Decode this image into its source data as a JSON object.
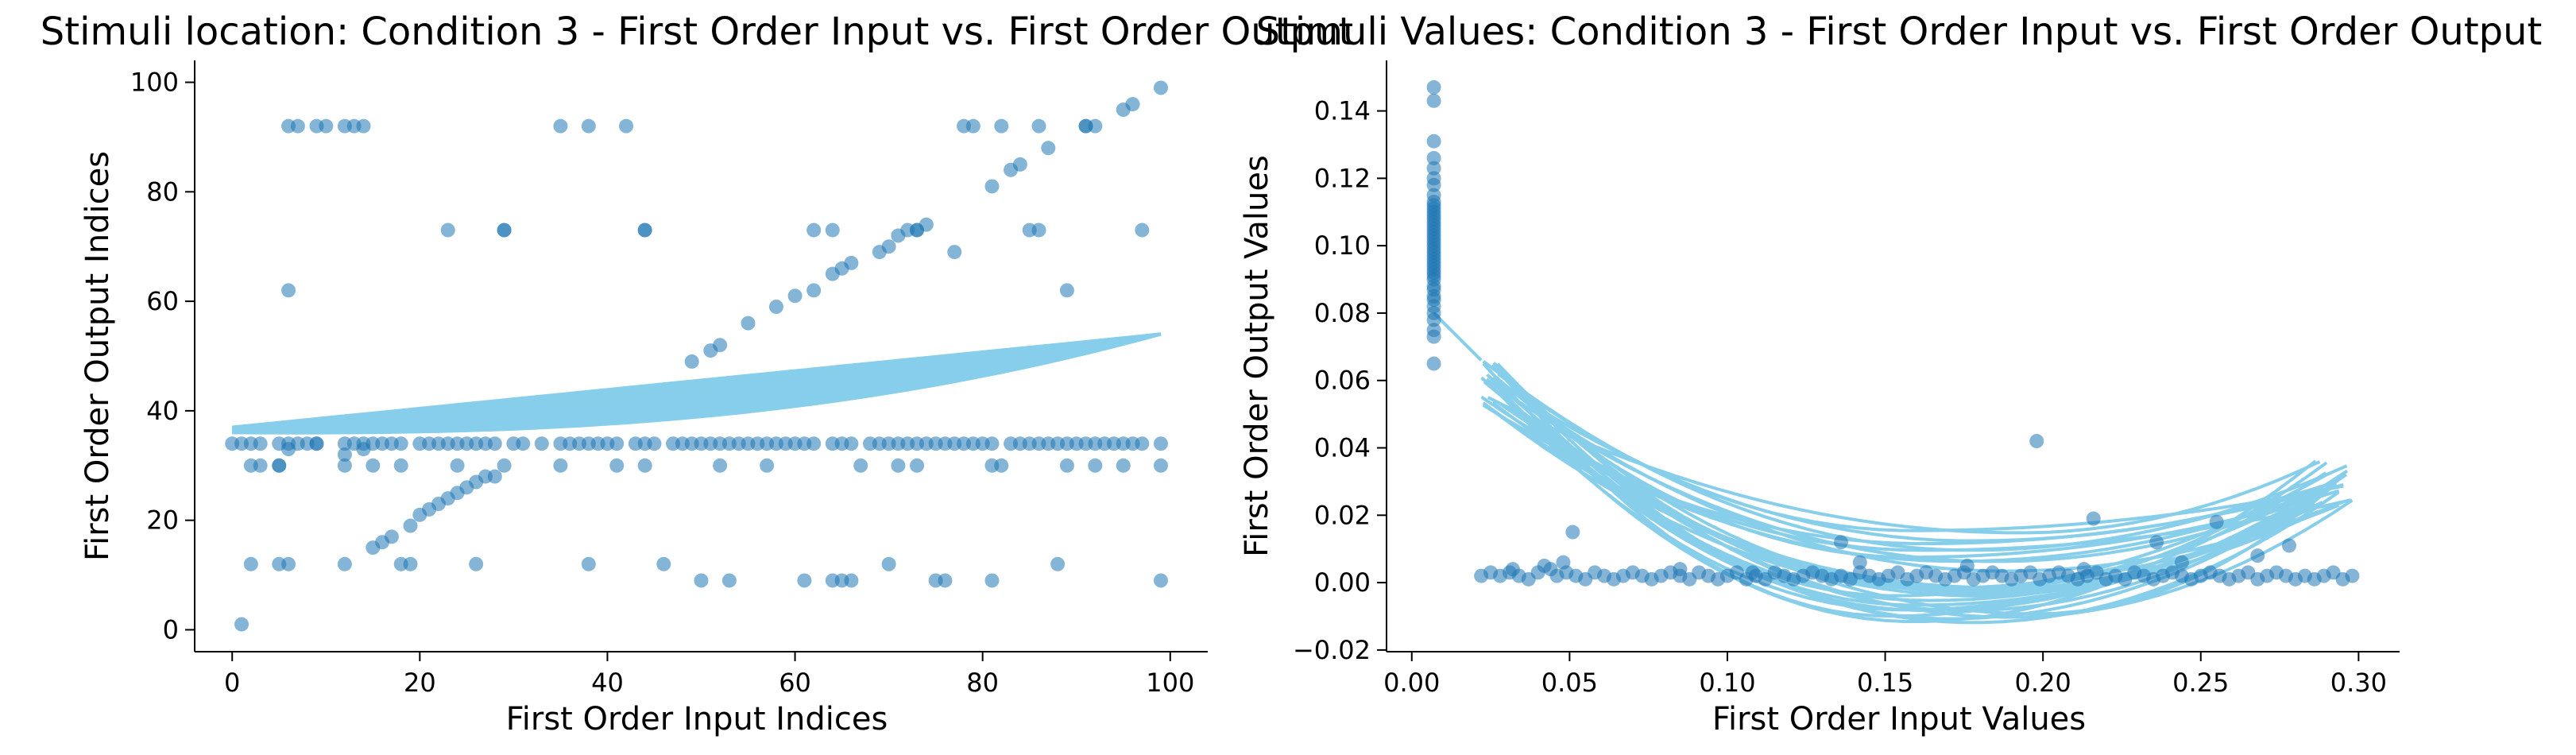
{
  "colors": {
    "point": "#1f77b4",
    "fit_line": "#87ceeb",
    "axis": "#000000",
    "background": "#ffffff"
  },
  "chart_data": [
    {
      "type": "scatter",
      "title": "Stimuli location: Condition 3 - First Order Input vs. First Order Output",
      "xlabel": "First Order Input Indices",
      "ylabel": "First Order Output Indices",
      "xlim": [
        -4,
        104
      ],
      "ylim": [
        -4,
        104
      ],
      "xticks": [
        0,
        20,
        40,
        60,
        80,
        100
      ],
      "yticks": [
        0,
        20,
        40,
        60,
        80,
        100
      ],
      "grid": false,
      "spines": "left-bottom",
      "series": [
        {
          "kind": "points",
          "x": [
            0,
            1,
            2,
            3,
            5,
            6,
            7,
            8,
            9,
            12,
            13,
            14,
            15,
            16,
            17,
            18,
            20,
            21,
            22,
            23,
            24,
            25,
            26,
            27,
            28,
            30,
            31,
            33,
            35,
            36,
            37,
            38,
            39,
            40,
            41,
            43,
            44,
            45,
            47,
            48,
            49,
            50,
            51,
            52,
            53,
            54,
            55,
            56,
            57,
            58,
            59,
            60,
            61,
            62,
            64,
            65,
            66,
            68,
            69,
            70,
            71,
            72,
            73,
            74,
            75,
            76,
            77,
            78,
            79,
            80,
            81,
            83,
            84,
            85,
            86,
            87,
            88,
            89,
            90,
            91,
            92,
            93,
            94,
            95,
            96,
            97,
            99,
            2,
            3,
            5,
            12,
            15,
            18,
            24,
            29,
            35,
            41,
            44,
            52,
            57,
            67,
            71,
            73,
            81,
            82,
            89,
            92,
            95,
            99,
            2,
            5,
            6,
            12,
            19,
            26,
            38,
            46,
            50,
            53,
            61,
            64,
            65,
            66,
            70,
            75,
            76,
            81,
            88,
            99,
            1,
            5,
            6,
            9,
            12,
            14,
            15,
            16,
            17,
            18,
            19,
            20,
            21,
            22,
            23,
            24,
            25,
            26,
            27,
            28,
            6,
            7,
            9,
            10,
            12,
            13,
            14,
            35,
            38,
            42,
            78,
            79,
            82,
            86,
            91,
            6,
            29,
            44,
            62,
            89,
            86,
            73,
            64,
            97,
            99,
            23,
            29,
            44,
            49,
            51,
            52,
            55,
            58,
            60,
            62,
            64,
            65,
            66,
            69,
            70,
            71,
            72,
            73,
            74,
            77,
            81,
            83,
            84,
            85,
            87,
            91,
            92,
            95,
            96
          ],
          "y": [
            34,
            34,
            34,
            34,
            34,
            34,
            34,
            34,
            34,
            34,
            34,
            34,
            34,
            34,
            34,
            34,
            34,
            34,
            34,
            34,
            34,
            34,
            34,
            34,
            34,
            34,
            34,
            34,
            34,
            34,
            34,
            34,
            34,
            34,
            34,
            34,
            34,
            34,
            34,
            34,
            34,
            34,
            34,
            34,
            34,
            34,
            34,
            34,
            34,
            34,
            34,
            34,
            34,
            34,
            34,
            34,
            34,
            34,
            34,
            34,
            34,
            34,
            34,
            34,
            34,
            34,
            34,
            34,
            34,
            34,
            34,
            34,
            34,
            34,
            34,
            34,
            34,
            34,
            34,
            34,
            34,
            34,
            34,
            34,
            34,
            34,
            34,
            30,
            30,
            30,
            30,
            30,
            30,
            30,
            30,
            30,
            30,
            30,
            30,
            30,
            30,
            30,
            30,
            30,
            30,
            30,
            30,
            30,
            30,
            12,
            12,
            12,
            12,
            12,
            12,
            12,
            12,
            9,
            9,
            9,
            9,
            9,
            9,
            12,
            9,
            9,
            9,
            12,
            9,
            1,
            30,
            33,
            34,
            32,
            33,
            15,
            16,
            17,
            12,
            19,
            21,
            22,
            23,
            24,
            25,
            26,
            27,
            28,
            28,
            92,
            92,
            92,
            92,
            92,
            92,
            92,
            92,
            92,
            92,
            92,
            92,
            92,
            92,
            92,
            62,
            73,
            73,
            73,
            62,
            73,
            73,
            73,
            73,
            99,
            73,
            73,
            73,
            49,
            51,
            52,
            56,
            59,
            61,
            62,
            65,
            66,
            67,
            69,
            70,
            72,
            73,
            73,
            74,
            69,
            81,
            84,
            85,
            73,
            88,
            92,
            92,
            95,
            96
          ]
        },
        {
          "kind": "fit-envelope",
          "x_range": [
            0,
            99
          ],
          "upper_start": 37,
          "upper_end": 54,
          "lower_start": 36,
          "lower_end": 54,
          "lower_min": 35
        }
      ]
    },
    {
      "type": "scatter",
      "title": "Stimuli Values: Condition 3 - First Order Input vs. First Order Output",
      "xlabel": "First Order Input Values",
      "ylabel": "First Order Output Values",
      "xlim": [
        -0.008,
        0.313
      ],
      "ylim": [
        -0.0205,
        0.155
      ],
      "xticks": [
        "0.00",
        "0.05",
        "0.10",
        "0.15",
        "0.20",
        "0.25",
        "0.30"
      ],
      "yticks": [
        "−0.02",
        "0.00",
        "0.02",
        "0.04",
        "0.06",
        "0.08",
        "0.10",
        "0.12",
        "0.14"
      ],
      "grid": false,
      "spines": "left-bottom",
      "series": [
        {
          "kind": "points",
          "x": [
            0.007,
            0.007,
            0.007,
            0.007,
            0.007,
            0.007,
            0.007,
            0.007,
            0.007,
            0.007,
            0.007,
            0.007,
            0.007,
            0.007,
            0.007,
            0.007,
            0.007,
            0.007,
            0.007,
            0.007,
            0.007,
            0.007,
            0.007,
            0.007,
            0.007,
            0.007,
            0.007,
            0.007,
            0.007,
            0.007,
            0.007,
            0.007,
            0.007,
            0.007,
            0.007,
            0.007,
            0.007,
            0.007,
            0.007,
            0.007,
            0.007,
            0.007,
            0.022,
            0.025,
            0.028,
            0.031,
            0.034,
            0.037,
            0.04,
            0.042,
            0.044,
            0.046,
            0.049,
            0.052,
            0.055,
            0.058,
            0.061,
            0.064,
            0.067,
            0.07,
            0.073,
            0.076,
            0.079,
            0.082,
            0.085,
            0.088,
            0.091,
            0.094,
            0.097,
            0.1,
            0.103,
            0.106,
            0.109,
            0.112,
            0.115,
            0.118,
            0.121,
            0.124,
            0.127,
            0.13,
            0.133,
            0.136,
            0.139,
            0.142,
            0.145,
            0.148,
            0.151,
            0.154,
            0.157,
            0.16,
            0.163,
            0.166,
            0.169,
            0.172,
            0.175,
            0.178,
            0.181,
            0.184,
            0.187,
            0.19,
            0.193,
            0.196,
            0.199,
            0.202,
            0.205,
            0.208,
            0.211,
            0.214,
            0.217,
            0.22,
            0.223,
            0.226,
            0.229,
            0.232,
            0.235,
            0.238,
            0.241,
            0.244,
            0.247,
            0.25,
            0.253,
            0.256,
            0.259,
            0.262,
            0.265,
            0.268,
            0.271,
            0.274,
            0.277,
            0.28,
            0.283,
            0.286,
            0.289,
            0.292,
            0.295,
            0.298,
            0.051,
            0.198,
            0.136,
            0.216,
            0.236,
            0.255,
            0.268,
            0.278,
            0.244,
            0.032,
            0.048,
            0.085,
            0.108,
            0.142,
            0.176,
            0.213
          ],
          "y": [
            0.065,
            0.073,
            0.075,
            0.078,
            0.08,
            0.082,
            0.084,
            0.085,
            0.087,
            0.088,
            0.09,
            0.091,
            0.092,
            0.093,
            0.094,
            0.095,
            0.096,
            0.097,
            0.098,
            0.099,
            0.1,
            0.101,
            0.102,
            0.103,
            0.104,
            0.105,
            0.106,
            0.107,
            0.108,
            0.109,
            0.11,
            0.111,
            0.112,
            0.113,
            0.115,
            0.118,
            0.12,
            0.123,
            0.126,
            0.131,
            0.143,
            0.147,
            0.002,
            0.003,
            0.002,
            0.003,
            0.002,
            0.001,
            0.003,
            0.005,
            0.004,
            0.002,
            0.003,
            0.002,
            0.001,
            0.003,
            0.002,
            0.001,
            0.002,
            0.003,
            0.002,
            0.001,
            0.002,
            0.003,
            0.002,
            0.001,
            0.003,
            0.002,
            0.001,
            0.002,
            0.003,
            0.001,
            0.002,
            0.001,
            0.003,
            0.002,
            0.001,
            0.002,
            0.003,
            0.002,
            0.001,
            0.002,
            0.001,
            0.003,
            0.002,
            0.001,
            0.002,
            0.003,
            0.001,
            0.002,
            0.003,
            0.002,
            0.001,
            0.002,
            0.003,
            0.001,
            0.002,
            0.003,
            0.002,
            0.001,
            0.002,
            0.003,
            0.001,
            0.002,
            0.003,
            0.002,
            0.001,
            0.002,
            0.003,
            0.001,
            0.002,
            0.001,
            0.003,
            0.002,
            0.001,
            0.002,
            0.003,
            0.002,
            0.001,
            0.002,
            0.003,
            0.002,
            0.001,
            0.002,
            0.003,
            0.001,
            0.002,
            0.003,
            0.002,
            0.001,
            0.002,
            0.001,
            0.002,
            0.003,
            0.001,
            0.002,
            0.015,
            0.042,
            0.012,
            0.019,
            0.012,
            0.018,
            0.008,
            0.011,
            0.006,
            0.004,
            0.006,
            0.004,
            0.003,
            0.006,
            0.005,
            0.004
          ]
        },
        {
          "kind": "fit-curves",
          "start": [
            0.007,
            0.08
          ],
          "end_x": 0.298,
          "curve_count": 28,
          "x_start_range": [
            0.022,
            0.03
          ],
          "y_start_range": [
            0.03,
            0.066
          ],
          "vertex_x_range": [
            0.15,
            0.2
          ],
          "vertex_y_range": [
            -0.012,
            0.016
          ],
          "y_end_range": [
            0.022,
            0.037
          ]
        }
      ]
    }
  ]
}
